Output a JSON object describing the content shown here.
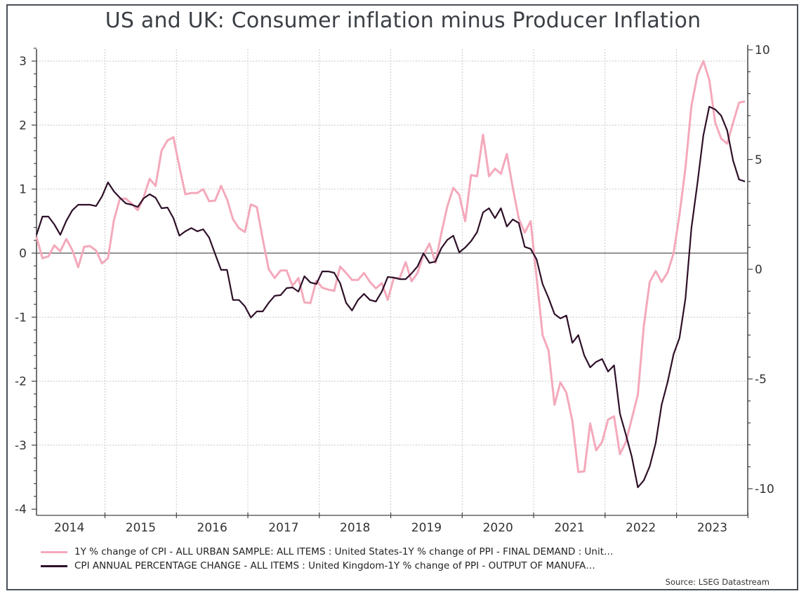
{
  "chart_data": {
    "type": "line",
    "title": "US and UK: Consumer inflation minus Producer Inflation",
    "source": "Source: LSEG Datastream",
    "x": [
      "2014-01",
      "2014-02",
      "2014-03",
      "2014-04",
      "2014-05",
      "2014-06",
      "2014-07",
      "2014-08",
      "2014-09",
      "2014-10",
      "2014-11",
      "2014-12",
      "2015-01",
      "2015-02",
      "2015-03",
      "2015-04",
      "2015-05",
      "2015-06",
      "2015-07",
      "2015-08",
      "2015-09",
      "2015-10",
      "2015-11",
      "2015-12",
      "2016-01",
      "2016-02",
      "2016-03",
      "2016-04",
      "2016-05",
      "2016-06",
      "2016-07",
      "2016-08",
      "2016-09",
      "2016-10",
      "2016-11",
      "2016-12",
      "2017-01",
      "2017-02",
      "2017-03",
      "2017-04",
      "2017-05",
      "2017-06",
      "2017-07",
      "2017-08",
      "2017-09",
      "2017-10",
      "2017-11",
      "2017-12",
      "2018-01",
      "2018-02",
      "2018-03",
      "2018-04",
      "2018-05",
      "2018-06",
      "2018-07",
      "2018-08",
      "2018-09",
      "2018-10",
      "2018-11",
      "2018-12",
      "2019-01",
      "2019-02",
      "2019-03",
      "2019-04",
      "2019-05",
      "2019-06",
      "2019-07",
      "2019-08",
      "2019-09",
      "2019-10",
      "2019-11",
      "2019-12",
      "2020-01",
      "2020-02",
      "2020-03",
      "2020-04",
      "2020-05",
      "2020-06",
      "2020-07",
      "2020-08",
      "2020-09",
      "2020-10",
      "2020-11",
      "2020-12",
      "2021-01",
      "2021-02",
      "2021-03",
      "2021-04",
      "2021-05",
      "2021-06",
      "2021-07",
      "2021-08",
      "2021-09",
      "2021-10",
      "2021-11",
      "2021-12",
      "2022-01",
      "2022-02",
      "2022-03",
      "2022-04",
      "2022-05",
      "2022-06",
      "2022-07",
      "2022-08",
      "2022-09",
      "2022-10",
      "2022-11",
      "2022-12",
      "2023-01",
      "2023-02",
      "2023-03",
      "2023-04",
      "2023-05",
      "2023-06",
      "2023-07",
      "2023-08",
      "2023-09",
      "2023-10",
      "2023-11",
      "2023-12"
    ],
    "x_tick_labels": [
      "2014",
      "2015",
      "2016",
      "2017",
      "2018",
      "2019",
      "2020",
      "2021",
      "2022",
      "2023"
    ],
    "y_left": {
      "ylim": [
        -4,
        3.2
      ],
      "ticks": [
        3,
        2,
        1,
        0,
        -1,
        -2,
        -3,
        -4
      ]
    },
    "y_right": {
      "ylim": [
        -10.96,
        10.03
      ],
      "ticks": [
        10,
        5,
        0,
        -5,
        -10
      ]
    },
    "grid": true,
    "legend_placement": "bottom",
    "series": [
      {
        "name": "1Y % change of CPI - ALL URBAN SAMPLE: ALL ITEMS : United States-1Y % change of PPI - FINAL DEMAND : Unit…",
        "axis": "left",
        "color": "#f4a9bb",
        "values": [
          0.25,
          -0.08,
          -0.05,
          0.12,
          0.03,
          0.22,
          0.05,
          -0.22,
          0.1,
          0.11,
          0.04,
          -0.16,
          -0.08,
          0.51,
          0.85,
          0.85,
          0.77,
          0.67,
          0.87,
          1.16,
          1.05,
          1.6,
          1.76,
          1.81,
          1.35,
          0.92,
          0.94,
          0.94,
          1.0,
          0.81,
          0.82,
          1.05,
          0.84,
          0.53,
          0.39,
          0.33,
          0.76,
          0.72,
          0.22,
          -0.25,
          -0.39,
          -0.27,
          -0.27,
          -0.51,
          -0.39,
          -0.77,
          -0.78,
          -0.43,
          -0.54,
          -0.57,
          -0.59,
          -0.21,
          -0.31,
          -0.42,
          -0.42,
          -0.31,
          -0.45,
          -0.55,
          -0.47,
          -0.73,
          -0.39,
          -0.39,
          -0.14,
          -0.44,
          -0.31,
          -0.03,
          0.15,
          -0.15,
          0.31,
          0.73,
          1.02,
          0.91,
          0.5,
          1.22,
          1.2,
          1.85,
          1.2,
          1.32,
          1.24,
          1.55,
          1.02,
          0.54,
          0.32,
          0.5,
          -0.38,
          -1.28,
          -1.52,
          -2.37,
          -2.02,
          -2.18,
          -2.62,
          -3.42,
          -3.41,
          -2.66,
          -3.08,
          -2.95,
          -2.6,
          -2.55,
          -3.14,
          -2.95,
          -2.58,
          -2.21,
          -1.14,
          -0.45,
          -0.28,
          -0.45,
          -0.3,
          0,
          0.6,
          1.33,
          2.3,
          2.78,
          3.0,
          2.71,
          2.04,
          1.79,
          1.71,
          2.04,
          2.35,
          2.37
        ]
      },
      {
        "name": "CPI ANNUAL PERCENTAGE CHANGE - ALL ITEMS : United Kingdom-1Y % change of PPI - OUTPUT OF MANUFA…",
        "axis": "right",
        "color": "#2e1028",
        "values": [
          1.57,
          2.4,
          2.4,
          2.04,
          1.57,
          2.2,
          2.68,
          2.94,
          2.94,
          2.94,
          2.88,
          3.32,
          3.96,
          3.55,
          3.26,
          3.0,
          2.94,
          2.84,
          3.23,
          3.42,
          3.26,
          2.78,
          2.81,
          2.33,
          1.53,
          1.73,
          1.88,
          1.73,
          1.82,
          1.44,
          0.7,
          -0.03,
          -0.03,
          -1.4,
          -1.4,
          -1.69,
          -2.2,
          -1.92,
          -1.92,
          -1.53,
          -1.21,
          -1.18,
          -0.86,
          -0.83,
          -1.02,
          -0.32,
          -0.6,
          -0.67,
          -0.1,
          -0.1,
          -0.16,
          -0.64,
          -1.53,
          -1.88,
          -1.4,
          -1.12,
          -1.4,
          -1.47,
          -1.02,
          -0.35,
          -0.38,
          -0.45,
          -0.45,
          -0.19,
          0.13,
          0.73,
          0.29,
          0.35,
          0.96,
          1.34,
          1.53,
          0.77,
          0.99,
          1.28,
          1.69,
          2.59,
          2.78,
          2.33,
          2.78,
          1.95,
          2.27,
          2.11,
          1.02,
          0.93,
          0.45,
          -0.67,
          -1.31,
          -2.04,
          -2.24,
          -2.11,
          -3.35,
          -3.0,
          -3.93,
          -4.47,
          -4.22,
          -4.09,
          -4.66,
          -4.38,
          -6.58,
          -7.54,
          -8.56,
          -9.94,
          -9.62,
          -8.98,
          -7.92,
          -6.17,
          -5.14,
          -3.87,
          -3.13,
          -1.34,
          1.88,
          3.9,
          6.1,
          7.41,
          7.28,
          7.0,
          6.33,
          4.95,
          4.09,
          4.0
        ]
      }
    ]
  }
}
